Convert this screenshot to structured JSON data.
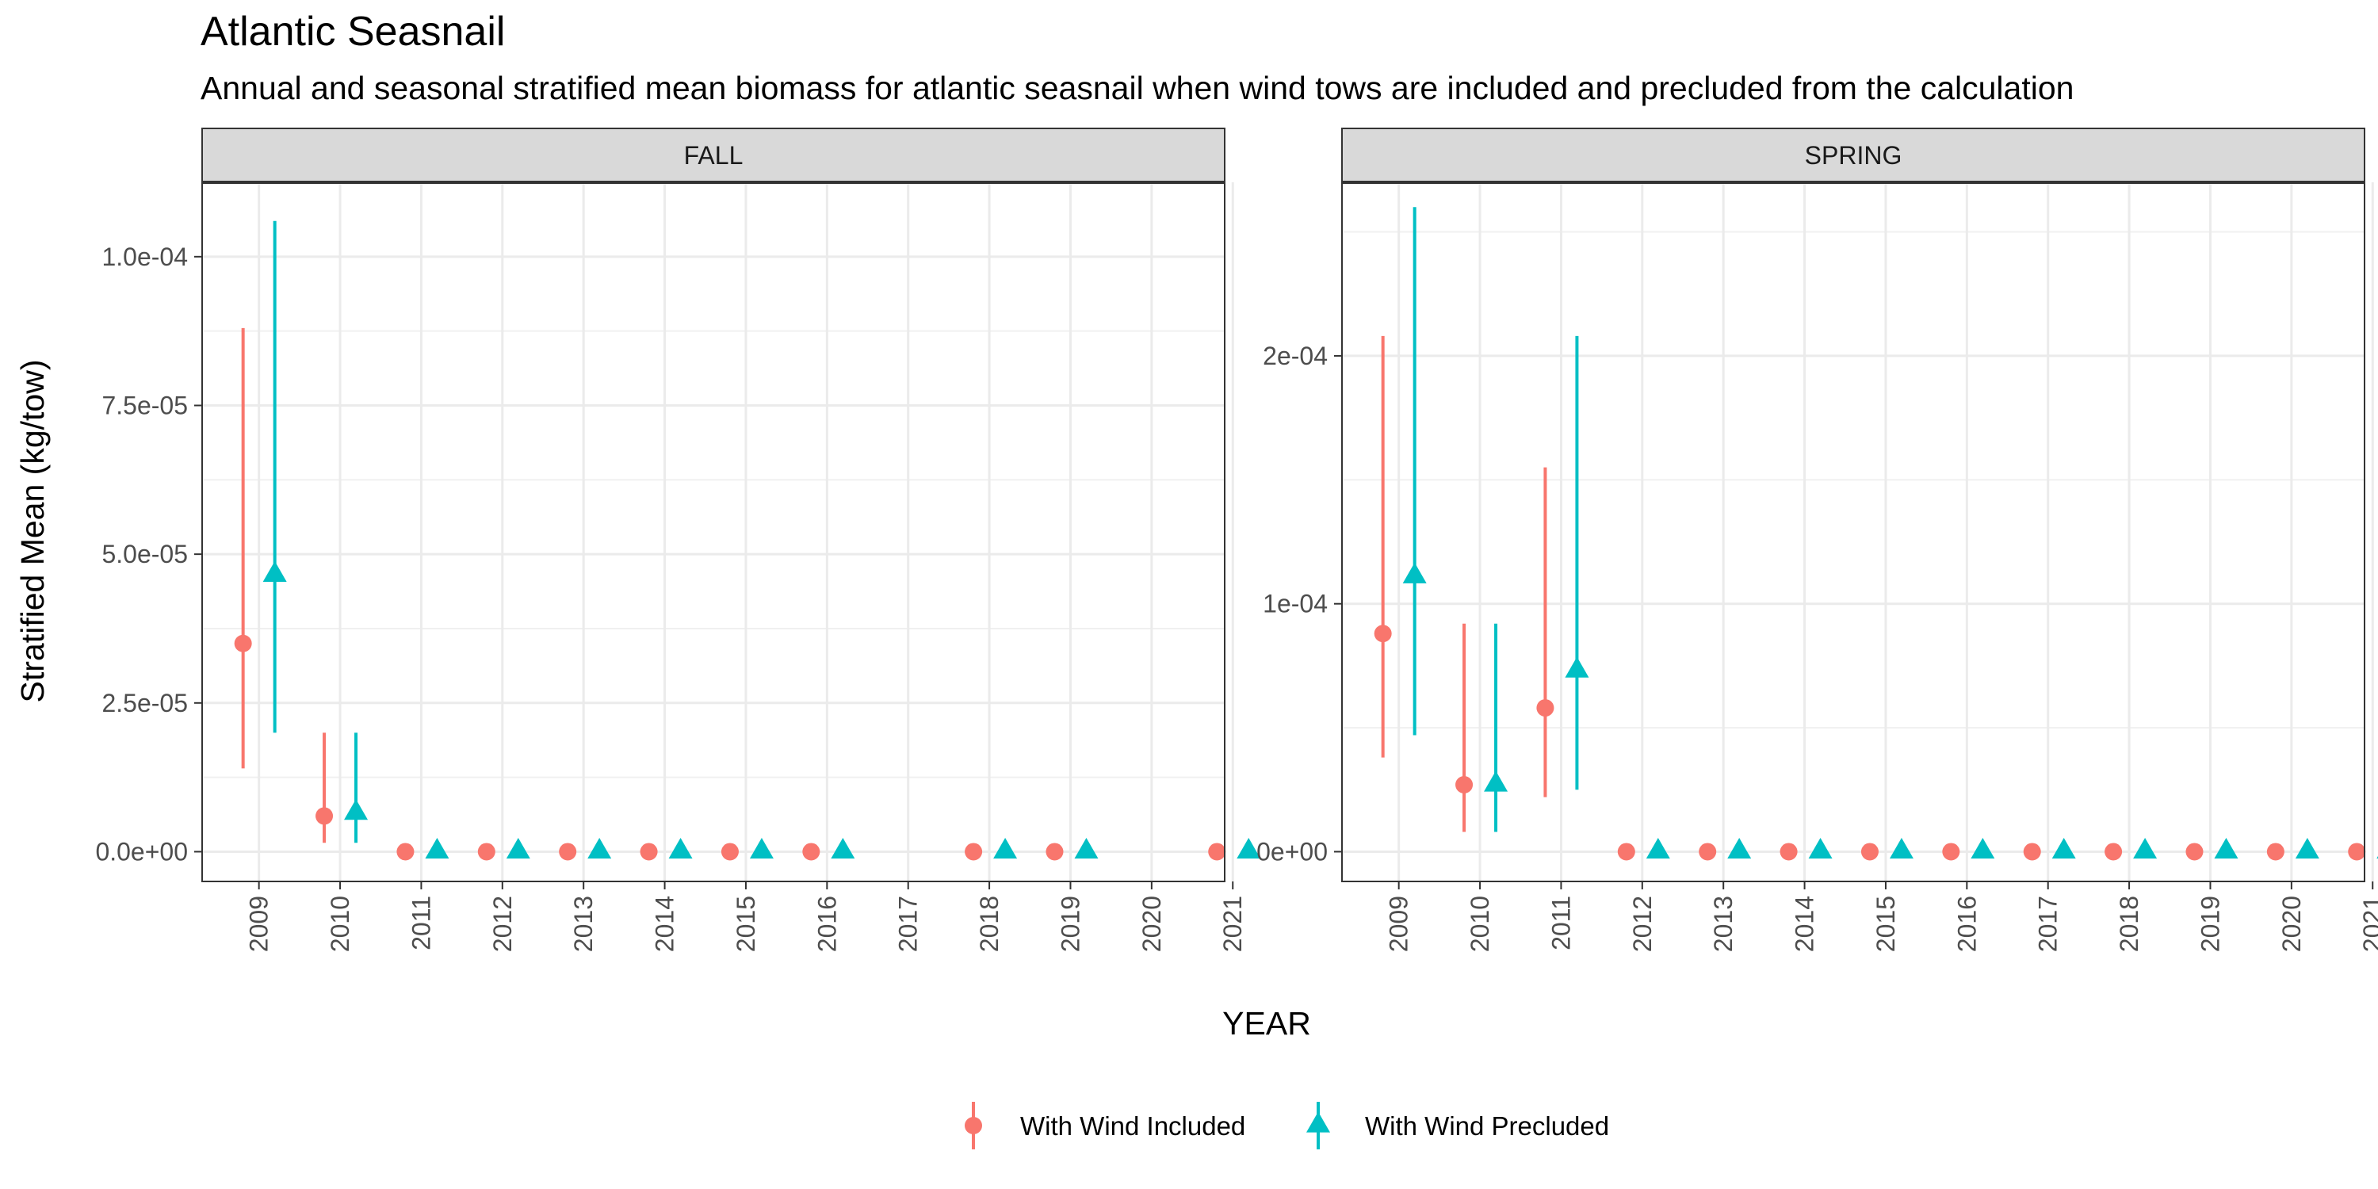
{
  "title": "Atlantic Seasnail",
  "subtitle": "Annual and seasonal stratified mean biomass for atlantic seasnail when wind tows are included and precluded from the calculation",
  "chart_data": {
    "type": "scatter",
    "xlabel": "YEAR",
    "ylabel": "Stratified Mean (kg/tow)",
    "grid": true,
    "legend_position": "bottom",
    "legend": [
      {
        "name": "With Wind Included",
        "color": "#F8766D",
        "shape": "circle"
      },
      {
        "name": "With Wind Precluded",
        "color": "#00BFC4",
        "shape": "triangle"
      }
    ],
    "x_ticks": [
      "2009",
      "2010",
      "2011",
      "2012",
      "2013",
      "2014",
      "2015",
      "2016",
      "2017",
      "2018",
      "2019",
      "2020",
      "2021"
    ],
    "panels": [
      {
        "strip": "FALL",
        "ylim": [
          -5e-06,
          0.0001125
        ],
        "y_ticks": [
          0,
          2.5e-05,
          5e-05,
          7.5e-05,
          0.0001
        ],
        "y_tick_labels": [
          "0.0e+00",
          "2.5e-05",
          "5.0e-05",
          "7.5e-05",
          "1.0e-04"
        ],
        "series": [
          {
            "name": "With Wind Included",
            "points": [
              {
                "x": "2009",
                "y": 3.5e-05,
                "lo": 1.4e-05,
                "hi": 8.8e-05
              },
              {
                "x": "2010",
                "y": 6e-06,
                "lo": 1.5e-06,
                "hi": 2e-05
              },
              {
                "x": "2011",
                "y": 0
              },
              {
                "x": "2012",
                "y": 0
              },
              {
                "x": "2013",
                "y": 0
              },
              {
                "x": "2014",
                "y": 0
              },
              {
                "x": "2015",
                "y": 0
              },
              {
                "x": "2016",
                "y": 0
              },
              {
                "x": "2018",
                "y": 0
              },
              {
                "x": "2019",
                "y": 0
              },
              {
                "x": "2021",
                "y": 0
              }
            ]
          },
          {
            "name": "With Wind Precluded",
            "points": [
              {
                "x": "2009",
                "y": 4.65e-05,
                "lo": 2e-05,
                "hi": 0.000106
              },
              {
                "x": "2010",
                "y": 6.5e-06,
                "lo": 1.5e-06,
                "hi": 2e-05
              },
              {
                "x": "2011",
                "y": 0
              },
              {
                "x": "2012",
                "y": 0
              },
              {
                "x": "2013",
                "y": 0
              },
              {
                "x": "2014",
                "y": 0
              },
              {
                "x": "2015",
                "y": 0
              },
              {
                "x": "2016",
                "y": 0
              },
              {
                "x": "2018",
                "y": 0
              },
              {
                "x": "2019",
                "y": 0
              },
              {
                "x": "2021",
                "y": 0
              }
            ]
          }
        ]
      },
      {
        "strip": "SPRING",
        "ylim": [
          -1.2e-05,
          0.00027
        ],
        "y_ticks": [
          0,
          0.0001,
          0.0002
        ],
        "y_tick_labels": [
          "0e+00",
          "1e-04",
          "2e-04"
        ],
        "series": [
          {
            "name": "With Wind Included",
            "points": [
              {
                "x": "2009",
                "y": 8.8e-05,
                "lo": 3.8e-05,
                "hi": 0.000208
              },
              {
                "x": "2010",
                "y": 2.7e-05,
                "lo": 8e-06,
                "hi": 9.2e-05
              },
              {
                "x": "2011",
                "y": 5.8e-05,
                "lo": 2.2e-05,
                "hi": 0.000155
              },
              {
                "x": "2012",
                "y": 0
              },
              {
                "x": "2013",
                "y": 0
              },
              {
                "x": "2014",
                "y": 0
              },
              {
                "x": "2015",
                "y": 0
              },
              {
                "x": "2016",
                "y": 0
              },
              {
                "x": "2017",
                "y": 0
              },
              {
                "x": "2018",
                "y": 0
              },
              {
                "x": "2019",
                "y": 0
              },
              {
                "x": "2020",
                "y": 0
              },
              {
                "x": "2021",
                "y": 0
              }
            ]
          },
          {
            "name": "With Wind Precluded",
            "points": [
              {
                "x": "2009",
                "y": 0.000111,
                "lo": 4.7e-05,
                "hi": 0.00026
              },
              {
                "x": "2010",
                "y": 2.7e-05,
                "lo": 8e-06,
                "hi": 9.2e-05
              },
              {
                "x": "2011",
                "y": 7.3e-05,
                "lo": 2.5e-05,
                "hi": 0.000208
              },
              {
                "x": "2012",
                "y": 0
              },
              {
                "x": "2013",
                "y": 0
              },
              {
                "x": "2014",
                "y": 0
              },
              {
                "x": "2015",
                "y": 0
              },
              {
                "x": "2016",
                "y": 0
              },
              {
                "x": "2017",
                "y": 0
              },
              {
                "x": "2018",
                "y": 0
              },
              {
                "x": "2019",
                "y": 0
              },
              {
                "x": "2020",
                "y": 0
              },
              {
                "x": "2021",
                "y": 0
              }
            ]
          }
        ]
      }
    ]
  }
}
